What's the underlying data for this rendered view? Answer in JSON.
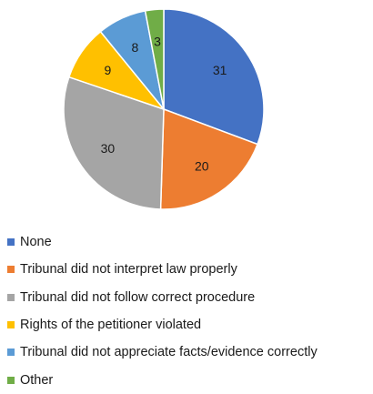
{
  "chart_data": {
    "type": "pie",
    "start_angle_deg": 0,
    "direction": "clockwise",
    "slices": [
      {
        "name": "None",
        "value": 31,
        "color": "#4472C4"
      },
      {
        "name": "Tribunal did not interpret law properly",
        "value": 20,
        "color": "#ED7D31"
      },
      {
        "name": "Tribunal did not follow correct procedure",
        "value": 30,
        "color": "#A5A5A5"
      },
      {
        "name": "Rights of the petitioner violated",
        "value": 9,
        "color": "#FFC000"
      },
      {
        "name": "Tribunal did not appreciate facts/evidence correctly",
        "value": 8,
        "color": "#5B9BD5"
      },
      {
        "name": "Other",
        "value": 3,
        "color": "#70AD47"
      }
    ],
    "legend_position": "bottom-left",
    "data_labels": true
  }
}
